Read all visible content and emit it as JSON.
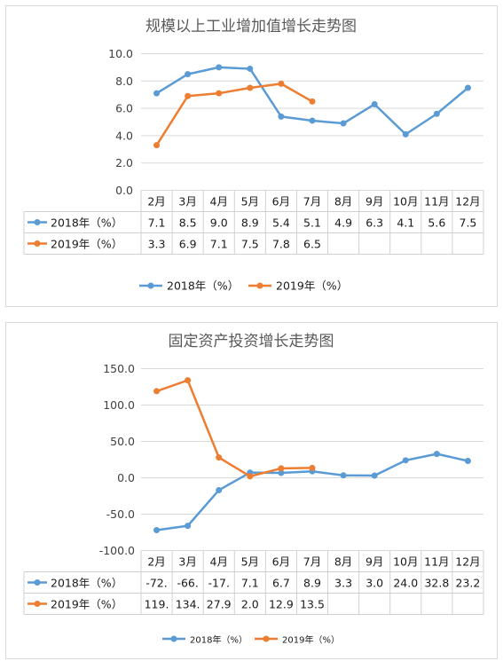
{
  "colors": {
    "s2018": "#5B9BD5",
    "s2019": "#ED7D31"
  },
  "chart_data": [
    {
      "type": "line",
      "title": "规模以上工业增加值增长走势图",
      "categories": [
        "2月",
        "3月",
        "4月",
        "5月",
        "6月",
        "7月",
        "8月",
        "9月",
        "10月",
        "11月",
        "12月"
      ],
      "ylim": [
        0,
        10
      ],
      "yticks": [
        "0.0",
        "2.0",
        "4.0",
        "6.0",
        "8.0",
        "10.0"
      ],
      "grid": true,
      "legend": "bottom",
      "series": [
        {
          "name": "2018年（%）",
          "values": [
            7.1,
            8.5,
            9.0,
            8.9,
            5.4,
            5.1,
            4.9,
            6.3,
            4.1,
            5.6,
            7.5
          ],
          "labels": [
            "7.1",
            "8.5",
            "9.0",
            "8.9",
            "5.4",
            "5.1",
            "4.9",
            "6.3",
            "4.1",
            "5.6",
            "7.5"
          ]
        },
        {
          "name": "2019年（%）",
          "values": [
            3.3,
            6.9,
            7.1,
            7.5,
            7.8,
            6.5,
            null,
            null,
            null,
            null,
            null
          ],
          "labels": [
            "3.3",
            "6.9",
            "7.1",
            "7.5",
            "7.8",
            "6.5",
            "",
            "",
            "",
            "",
            ""
          ]
        }
      ]
    },
    {
      "type": "line",
      "title": "固定资产投资增长走势图",
      "categories": [
        "2月",
        "3月",
        "4月",
        "5月",
        "6月",
        "7月",
        "8月",
        "9月",
        "10月",
        "11月",
        "12月"
      ],
      "ylim": [
        -100,
        150
      ],
      "yticks": [
        "-100.0",
        "-50.0",
        "0.0",
        "50.0",
        "100.0",
        "150.0"
      ],
      "grid": true,
      "legend": "bottom",
      "series": [
        {
          "name": "2018年（%）",
          "values": [
            -72,
            -66,
            -17,
            7.1,
            6.7,
            8.9,
            3.3,
            3.0,
            24.0,
            32.8,
            23.2
          ],
          "labels": [
            "-72.",
            "-66.",
            "-17.",
            "7.1",
            "6.7",
            "8.9",
            "3.3",
            "3.0",
            "24.0",
            "32.8",
            "23.2"
          ]
        },
        {
          "name": "2019年（%）",
          "values": [
            119,
            134,
            27.9,
            2.0,
            12.9,
            13.5,
            null,
            null,
            null,
            null,
            null
          ],
          "labels": [
            "119.",
            "134.",
            "27.9",
            "2.0",
            "12.9",
            "13.5",
            "",
            "",
            "",
            "",
            ""
          ]
        }
      ]
    }
  ]
}
